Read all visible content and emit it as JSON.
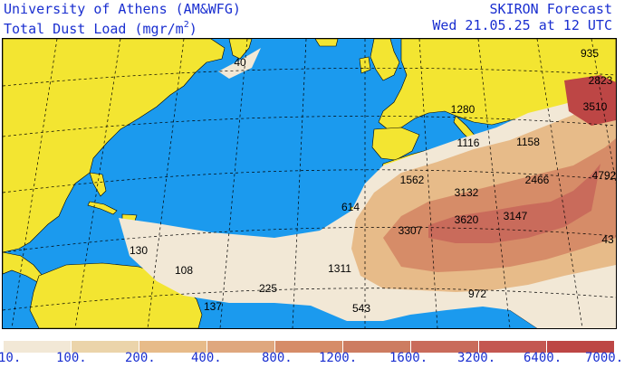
{
  "header": {
    "institution": "University of Athens (AM&WFG)",
    "product_main": "Total Dust Load (mgr/m",
    "product_sup": "2",
    "product_end": ")",
    "model": "SKIRON Forecast",
    "valid_time": "Wed 21.05.25 at 12 UTC"
  },
  "colors": {
    "ocean": "#1b9aee",
    "land": "#f3e531",
    "text": "#1a2fd0"
  },
  "contour_labels": [
    "40",
    "935",
    "2823",
    "3510",
    "1280",
    "1116",
    "1158",
    "4792",
    "2466",
    "1562",
    "3132",
    "614",
    "3620",
    "3147",
    "3307",
    "43",
    "130",
    "108",
    "1311",
    "225",
    "137",
    "543",
    "972"
  ],
  "legend": {
    "colors": [
      "#f2e8d6",
      "#ebd4aa",
      "#e7bb89",
      "#dfa77e",
      "#d68c68",
      "#cd7c61",
      "#c96b5b",
      "#c45751",
      "#bd4645"
    ],
    "labels": [
      "10.",
      "100.",
      "200.",
      "400.",
      "800.",
      "1200.",
      "1600.",
      "3200.",
      "6400.",
      "7000."
    ]
  }
}
